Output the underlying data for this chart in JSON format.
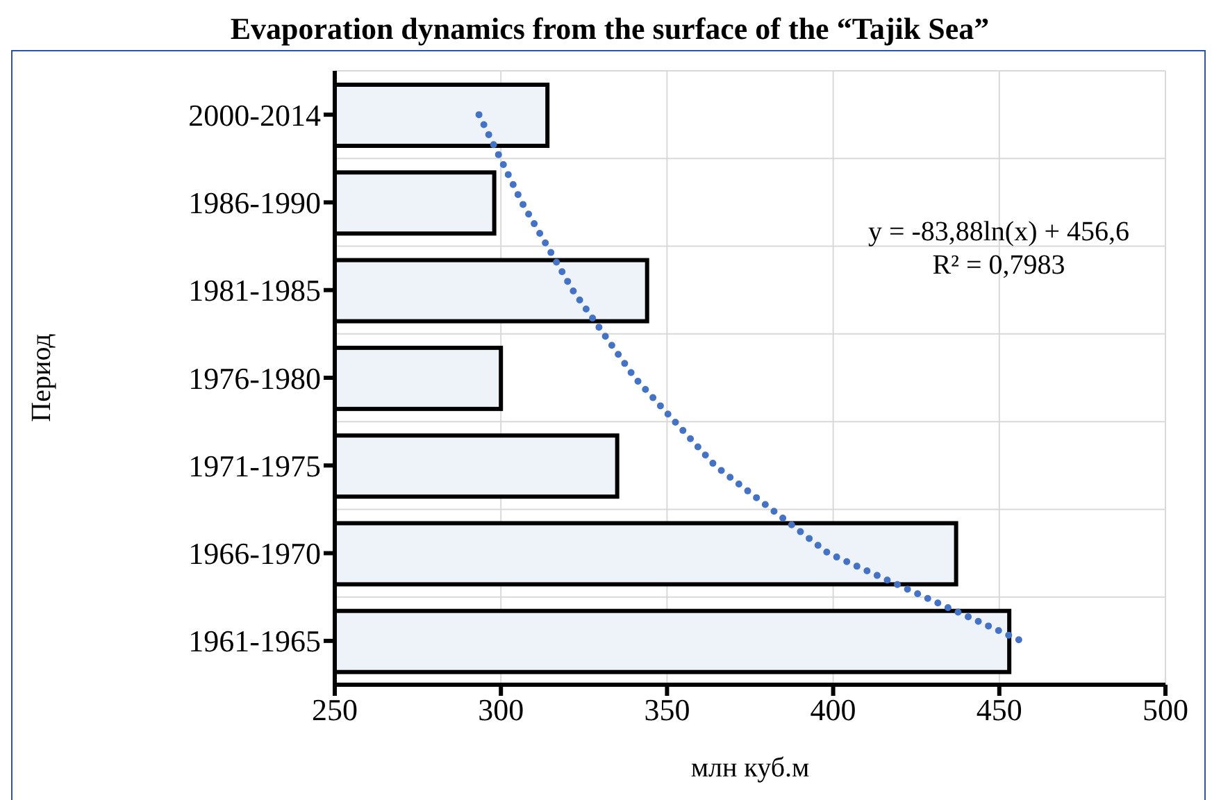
{
  "chart_data": {
    "type": "bar",
    "orientation": "horizontal",
    "title": "Evaporation dynamics from the surface of the “Tajik Sea”",
    "xlabel": "млн куб.м",
    "ylabel": "Период",
    "categories": [
      "2000-2014",
      "1986-1990",
      "1981-1985",
      "1976-1980",
      "1971-1975",
      "1966-1970",
      "1961-1965"
    ],
    "series": [
      {
        "color": "#eef3fa",
        "values": [
          314,
          298,
          344,
          300,
          335,
          437,
          453
        ]
      },
      {
        "type": "line",
        "color": "#4472c4",
        "line_style": "dotted",
        "marker": "none",
        "values": [
          293.4,
          306.3,
          321.6,
          340.3,
          364.4,
          398.5,
          456.6
        ]
      }
    ],
    "xlim": [
      250,
      500
    ],
    "xticks": [
      250,
      300,
      350,
      400,
      450,
      500
    ],
    "grid": true,
    "legend": false,
    "annotations": [
      "y = -83,88ln(x) + 456,6",
      "R² = 0,7983"
    ]
  }
}
